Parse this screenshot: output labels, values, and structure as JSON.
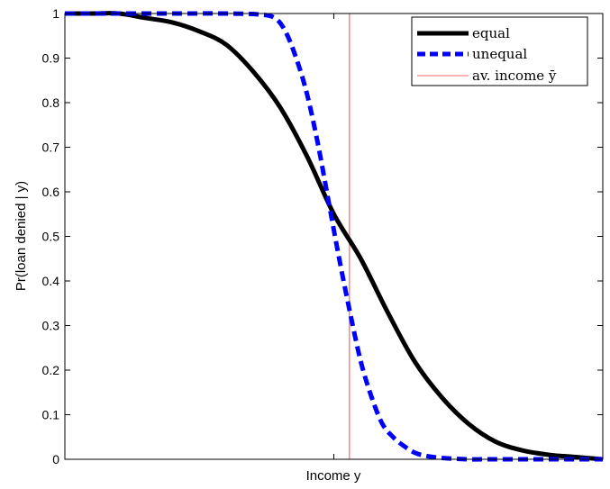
{
  "chart_data": {
    "type": "line",
    "title": "",
    "xlabel": "Income y",
    "ylabel": "Pr(loan denied | y)",
    "x_tick_labels": [
      ""
    ],
    "ylim": [
      0,
      1
    ],
    "yticks": [
      0,
      0.1,
      0.2,
      0.3,
      0.4,
      0.5,
      0.6,
      0.7,
      0.8,
      0.9,
      1
    ],
    "ytick_labels": [
      "0",
      "0.1",
      "0.2",
      "0.3",
      "0.4",
      "0.5",
      "0.6",
      "0.7",
      "0.8",
      "0.9",
      "1"
    ],
    "grid": false,
    "legend_position": "top-right",
    "series": [
      {
        "name": "equal",
        "color": "#000000",
        "style": "solid",
        "x": [
          0.0,
          0.05,
          0.1,
          0.15,
          0.2,
          0.25,
          0.3,
          0.35,
          0.4,
          0.45,
          0.5,
          0.55,
          0.6,
          0.65,
          0.7,
          0.75,
          0.8,
          0.85,
          0.9,
          0.95,
          1.0
        ],
        "values": [
          1.0,
          1.0,
          1.0,
          0.99,
          0.98,
          0.96,
          0.93,
          0.87,
          0.79,
          0.68,
          0.55,
          0.45,
          0.33,
          0.22,
          0.14,
          0.08,
          0.04,
          0.02,
          0.01,
          0.005,
          0.0
        ]
      },
      {
        "name": "unequal",
        "color": "#0000ff",
        "style": "dashed",
        "x": [
          0.0,
          0.1,
          0.2,
          0.3,
          0.36,
          0.39,
          0.41,
          0.43,
          0.45,
          0.47,
          0.49,
          0.51,
          0.53,
          0.55,
          0.57,
          0.59,
          0.61,
          0.63,
          0.65,
          0.67,
          0.7,
          0.75,
          0.8,
          1.0
        ],
        "values": [
          1.0,
          1.0,
          1.0,
          1.0,
          0.998,
          0.99,
          0.96,
          0.9,
          0.82,
          0.71,
          0.58,
          0.45,
          0.33,
          0.22,
          0.14,
          0.08,
          0.05,
          0.03,
          0.015,
          0.008,
          0.003,
          0.0,
          0.0,
          0.0
        ]
      },
      {
        "name": "av. income ȳ",
        "color": "#ff6666",
        "style": "solid-thin",
        "vertical_line_x": 0.529
      }
    ]
  }
}
